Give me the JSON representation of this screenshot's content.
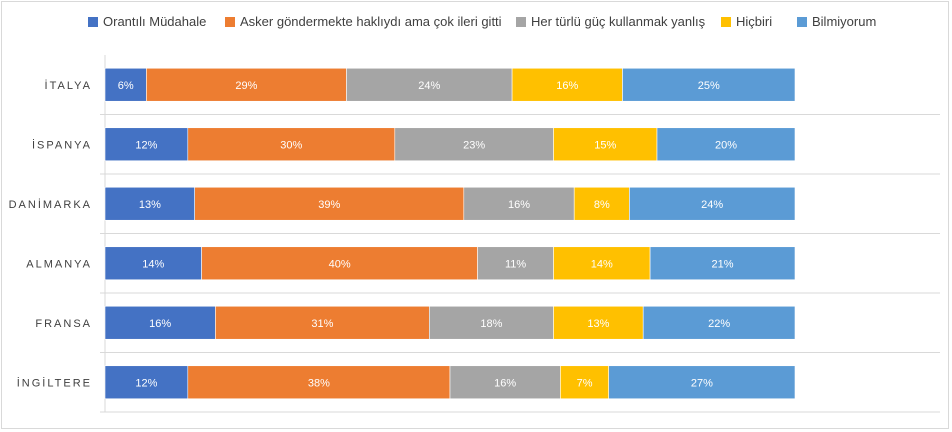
{
  "chart_data": {
    "type": "bar",
    "orientation": "horizontal",
    "stacked": "percent",
    "categories": [
      "İTALYA",
      "İSPANYA",
      "DANİMARKA",
      "ALMANYA",
      "FRANSA",
      "İNGİLTERE"
    ],
    "series": [
      {
        "name": "Orantılı Müdahale",
        "color": "#4472c4",
        "values": [
          6,
          12,
          13,
          14,
          16,
          12
        ]
      },
      {
        "name": "Asker göndermekte haklıydı ama çok ileri gitti",
        "color": "#ed7d31",
        "values": [
          29,
          30,
          39,
          40,
          31,
          38
        ]
      },
      {
        "name": "Her türlü güç kullanmak yanlış",
        "color": "#a5a5a5",
        "values": [
          24,
          23,
          16,
          11,
          18,
          16
        ]
      },
      {
        "name": "Hiçbiri",
        "color": "#ffc000",
        "values": [
          16,
          15,
          8,
          14,
          13,
          7
        ]
      },
      {
        "name": "Bilmiyorum",
        "color": "#5b9bd5",
        "values": [
          25,
          20,
          24,
          21,
          22,
          27
        ]
      }
    ],
    "value_suffix": "%",
    "grid": true,
    "legend_position": "top"
  }
}
